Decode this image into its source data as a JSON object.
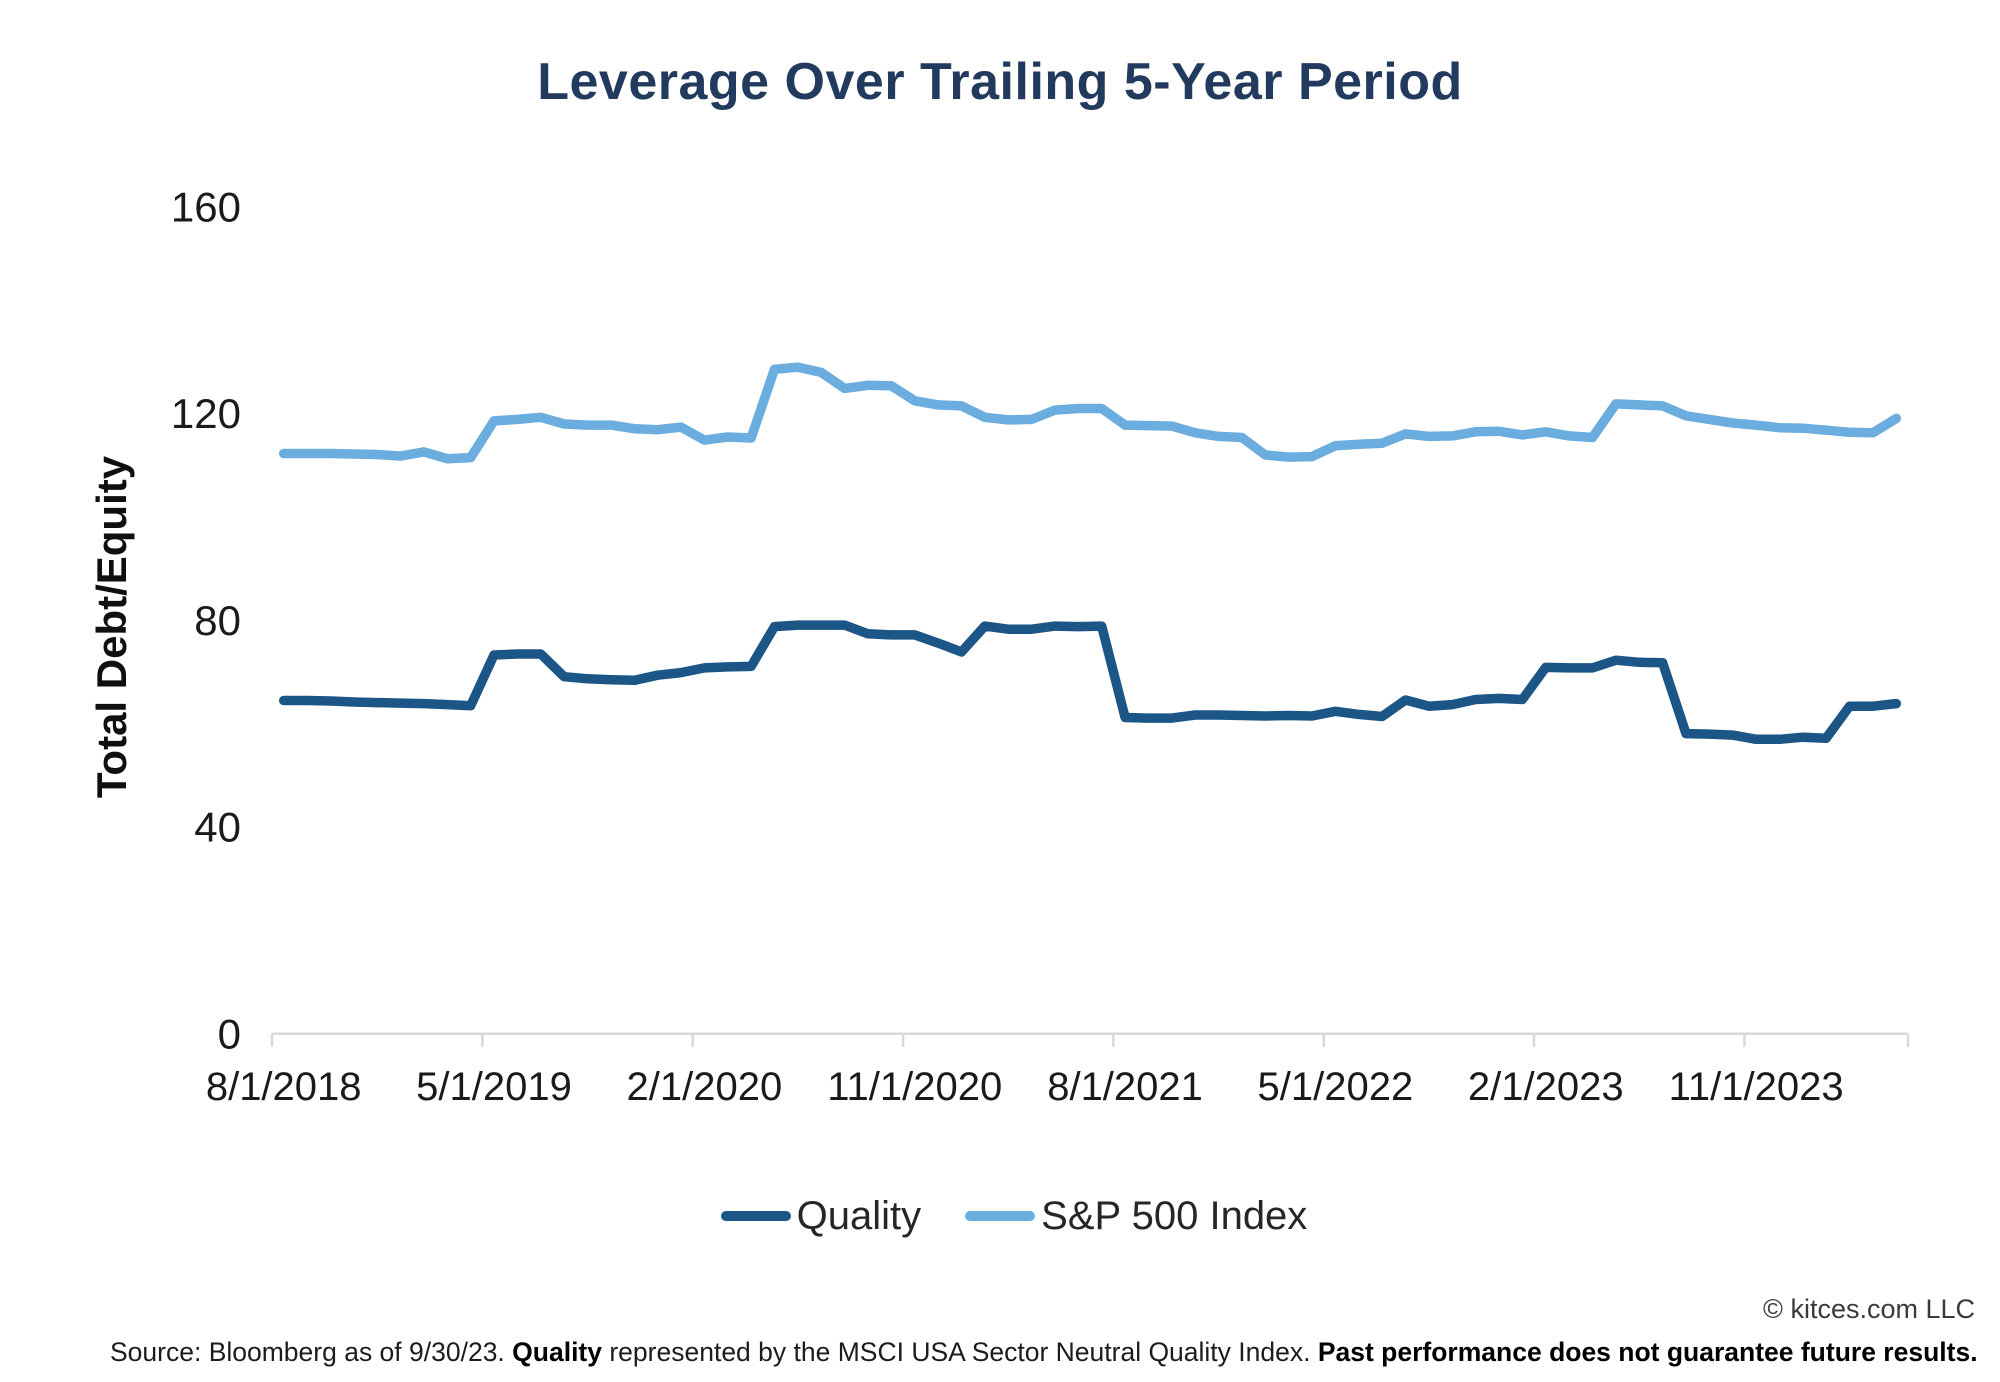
{
  "chart": {
    "title": "Leverage Over Trailing 5-Year Period",
    "y_axis_title": "Total Debt/Equity"
  },
  "footer": {
    "source_prefix": "Source: Bloomberg as of 9/30/23. ",
    "quality_word": "Quality",
    "source_middle": " represented by the MSCI USA Sector Neutral Quality Index. ",
    "disclaimer": "Past performance does not guarantee future results.",
    "copyright": "© kitces.com LLC"
  },
  "chart_data": {
    "type": "line",
    "title": "Leverage Over Trailing 5-Year Period",
    "xlabel": "",
    "ylabel": "Total Debt/Equity",
    "ylim": [
      0,
      160
    ],
    "y_ticks": [
      160,
      120,
      80,
      40,
      0
    ],
    "x_tick_labels": [
      "8/1/2018",
      "5/1/2019",
      "2/1/2020",
      "11/1/2020",
      "8/1/2021",
      "5/1/2022",
      "2/1/2023",
      "11/1/2023"
    ],
    "x_tick_interval_points": 9,
    "x_frequency": "monthly",
    "grid": false,
    "legend_position": "bottom",
    "axis_color": "#d9d9d9",
    "tick_label_color": "#1a1a1a",
    "series": [
      {
        "name": "Quality",
        "color": "#1b5687",
        "values": [
          64.5,
          64.5,
          64.4,
          64.2,
          64.1,
          64.0,
          63.9,
          63.7,
          63.5,
          73.3,
          73.5,
          73.5,
          69.1,
          68.7,
          68.5,
          68.4,
          69.4,
          69.9,
          70.8,
          71.0,
          71.1,
          78.8,
          79.1,
          79.1,
          79.1,
          77.4,
          77.2,
          77.2,
          75.6,
          73.9,
          78.9,
          78.3,
          78.3,
          78.9,
          78.8,
          78.9,
          61.2,
          61.1,
          61.1,
          61.7,
          61.7,
          61.6,
          61.5,
          61.6,
          61.5,
          62.4,
          61.8,
          61.4,
          64.6,
          63.4,
          63.7,
          64.7,
          64.9,
          64.7,
          70.9,
          70.8,
          70.8,
          72.3,
          71.9,
          71.8,
          58.1,
          58.0,
          57.8,
          57.0,
          57.0,
          57.4,
          57.2,
          63.4,
          63.4,
          63.9
        ]
      },
      {
        "name": "S&P 500 Index",
        "color": "#6badde",
        "values": [
          112.3,
          112.3,
          112.3,
          112.2,
          112.1,
          111.8,
          112.6,
          111.3,
          111.5,
          118.6,
          118.9,
          119.3,
          118.0,
          117.8,
          117.8,
          117.1,
          116.9,
          117.4,
          114.9,
          115.5,
          115.3,
          128.6,
          129.0,
          128.0,
          124.9,
          125.5,
          125.4,
          122.5,
          121.7,
          121.5,
          119.3,
          118.8,
          118.9,
          120.7,
          121.0,
          121.0,
          117.8,
          117.7,
          117.6,
          116.3,
          115.6,
          115.4,
          112.0,
          111.6,
          111.7,
          113.8,
          114.1,
          114.3,
          116.1,
          115.6,
          115.7,
          116.5,
          116.6,
          115.9,
          116.5,
          115.7,
          115.4,
          121.9,
          121.7,
          121.5,
          119.6,
          118.9,
          118.2,
          117.8,
          117.3,
          117.2,
          116.8,
          116.4,
          116.3,
          119.1
        ]
      }
    ]
  }
}
